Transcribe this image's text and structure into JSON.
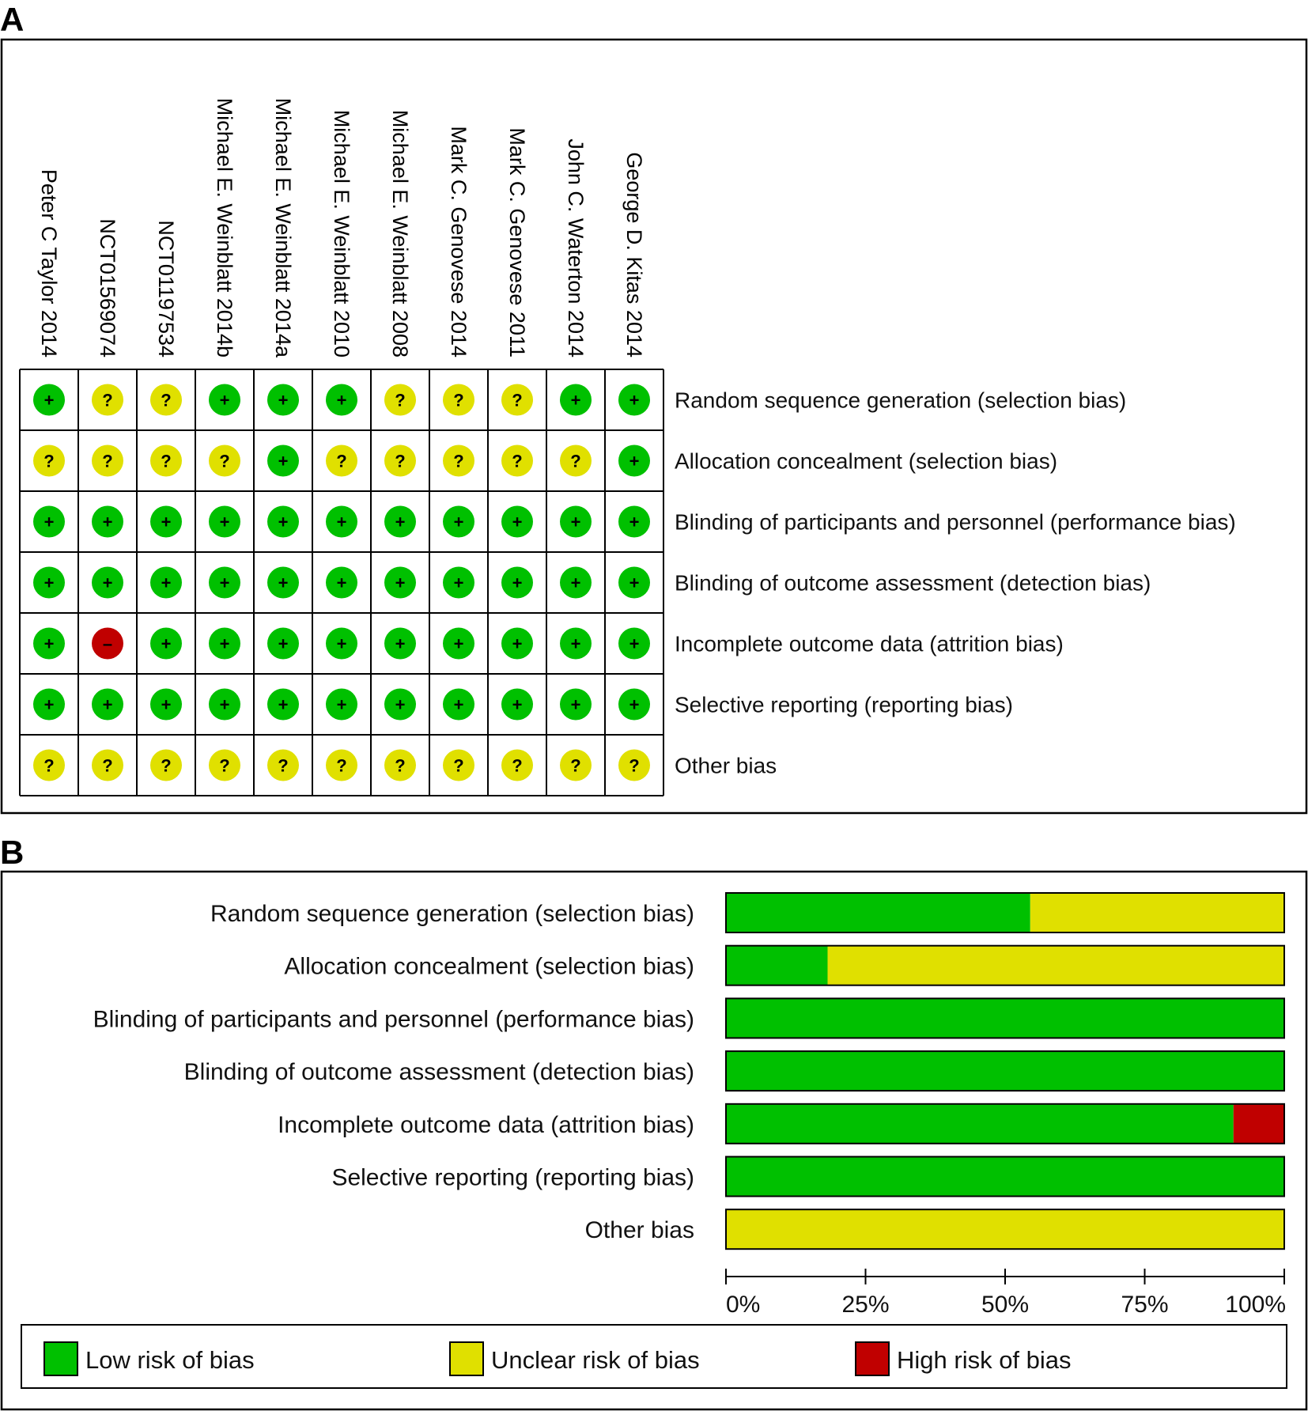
{
  "panels": {
    "a_label": "A",
    "b_label": "B"
  },
  "colors": {
    "low": "#00c000",
    "unclear": "#e0e000",
    "high": "#c00000"
  },
  "chart_data": [
    {
      "type": "table",
      "name": "risk-of-bias-summary",
      "studies": [
        "Peter C Taylor 2014",
        "NCT01569074",
        "NCT01197534",
        "Michael E. Weinblatt 2014b",
        "Michael E. Weinblatt 2014a",
        "Michael E. Weinblatt 2010",
        "Michael E. Weinblatt 2008",
        "Mark C. Genovese 2014",
        "Mark C. Genovese 2011",
        "John C. Waterton 2014",
        "George D. Kitas 2014"
      ],
      "domains": [
        "Random sequence generation (selection bias)",
        "Allocation concealment (selection bias)",
        "Blinding of participants and personnel (performance bias)",
        "Blinding of outcome assessment (detection bias)",
        "Incomplete outcome data (attrition bias)",
        "Selective reporting (reporting bias)",
        "Other bias"
      ],
      "judgements": [
        [
          "low",
          "unclear",
          "unclear",
          "low",
          "low",
          "low",
          "unclear",
          "unclear",
          "unclear",
          "low",
          "low"
        ],
        [
          "unclear",
          "unclear",
          "unclear",
          "unclear",
          "low",
          "unclear",
          "unclear",
          "unclear",
          "unclear",
          "unclear",
          "low"
        ],
        [
          "low",
          "low",
          "low",
          "low",
          "low",
          "low",
          "low",
          "low",
          "low",
          "low",
          "low"
        ],
        [
          "low",
          "low",
          "low",
          "low",
          "low",
          "low",
          "low",
          "low",
          "low",
          "low",
          "low"
        ],
        [
          "low",
          "high",
          "low",
          "low",
          "low",
          "low",
          "low",
          "low",
          "low",
          "low",
          "low"
        ],
        [
          "low",
          "low",
          "low",
          "low",
          "low",
          "low",
          "low",
          "low",
          "low",
          "low",
          "low"
        ],
        [
          "unclear",
          "unclear",
          "unclear",
          "unclear",
          "unclear",
          "unclear",
          "unclear",
          "unclear",
          "unclear",
          "unclear",
          "unclear"
        ]
      ],
      "symbols": {
        "low": "+",
        "unclear": "?",
        "high": "–"
      }
    },
    {
      "type": "bar",
      "name": "risk-of-bias-graph",
      "stacked": true,
      "orientation": "horizontal",
      "categories": [
        "Random sequence generation (selection bias)",
        "Allocation concealment (selection bias)",
        "Blinding of participants and personnel (performance bias)",
        "Blinding of outcome assessment (detection bias)",
        "Incomplete outcome data (attrition bias)",
        "Selective reporting (reporting bias)",
        "Other bias"
      ],
      "series": [
        {
          "name": "Low risk of bias",
          "key": "low",
          "values": [
            54.5,
            18.2,
            100,
            100,
            90.9,
            100,
            0
          ]
        },
        {
          "name": "Unclear risk of bias",
          "key": "unclear",
          "values": [
            45.5,
            81.8,
            0,
            0,
            0,
            0,
            100
          ]
        },
        {
          "name": "High risk of bias",
          "key": "high",
          "values": [
            0,
            0,
            0,
            0,
            9.1,
            0,
            0
          ]
        }
      ],
      "xlim": [
        0,
        100
      ],
      "xticks": [
        "0%",
        "25%",
        "50%",
        "75%",
        "100%"
      ],
      "legend": [
        {
          "label": "Low risk of bias",
          "key": "low"
        },
        {
          "label": "Unclear risk of bias",
          "key": "unclear"
        },
        {
          "label": "High risk of bias",
          "key": "high"
        }
      ]
    }
  ]
}
